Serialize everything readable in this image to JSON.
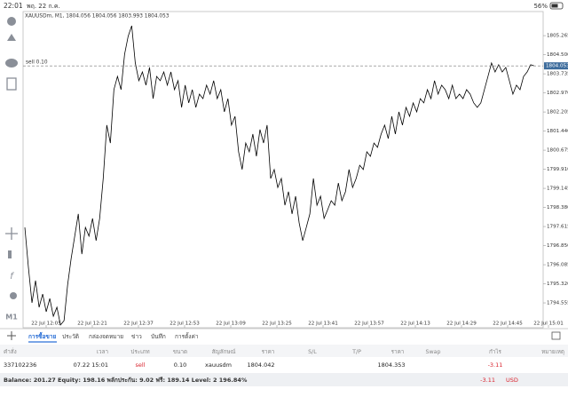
{
  "status_bar": {
    "time": "22:01",
    "date": "พฤ. 22 ก.ค.",
    "battery": "56%"
  },
  "chart_data": {
    "type": "line",
    "title": "XAUUSDm, M1, 1804.056 1804.056 1803.993 1804.053",
    "color": "#000000",
    "values": [
      1797.58,
      1795.98,
      1794.56,
      1795.45,
      1794.38,
      1794.91,
      1794.2,
      1794.73,
      1794.02,
      1794.38,
      1793.67,
      1793.84,
      1795.27,
      1796.34,
      1797.23,
      1798.12,
      1796.51,
      1797.58,
      1797.23,
      1797.94,
      1797.05,
      1797.94,
      1799.54,
      1801.68,
      1800.96,
      1803.1,
      1803.63,
      1803.1,
      1804.52,
      1805.24,
      1805.66,
      1804.17,
      1803.46,
      1803.81,
      1803.28,
      1803.99,
      1802.74,
      1803.63,
      1803.46,
      1803.81,
      1803.28,
      1803.81,
      1803.1,
      1803.46,
      1802.39,
      1803.28,
      1802.57,
      1803.1,
      1802.39,
      1802.92,
      1802.74,
      1803.28,
      1802.92,
      1803.46,
      1802.74,
      1803.1,
      1802.21,
      1802.74,
      1801.68,
      1802.03,
      1800.61,
      1799.9,
      1800.96,
      1800.61,
      1801.32,
      1800.43,
      1801.5,
      1800.96,
      1801.68,
      1799.54,
      1799.9,
      1799.18,
      1799.54,
      1798.47,
      1799.01,
      1798.12,
      1798.83,
      1797.76,
      1797.05,
      1797.58,
      1798.12,
      1799.54,
      1798.47,
      1798.83,
      1797.94,
      1798.29,
      1798.65,
      1798.47,
      1799.36,
      1798.65,
      1799.01,
      1799.9,
      1799.18,
      1799.54,
      1800.07,
      1799.9,
      1800.61,
      1800.43,
      1800.96,
      1800.79,
      1801.32,
      1801.68,
      1801.14,
      1802.03,
      1801.32,
      1802.21,
      1801.68,
      1802.39,
      1802.03,
      1802.57,
      1802.21,
      1802.74,
      1802.57,
      1803.1,
      1802.74,
      1803.46,
      1802.92,
      1803.28,
      1803.1,
      1802.74,
      1803.28,
      1802.74,
      1802.92,
      1802.74,
      1803.1,
      1802.92,
      1802.57,
      1802.39,
      1802.57,
      1803.1,
      1803.63,
      1804.17,
      1803.81,
      1804.1,
      1803.81,
      1803.99,
      1803.46,
      1802.92,
      1803.28,
      1803.1,
      1803.63,
      1803.81,
      1804.1,
      1804.05
    ],
    "ylim": [
      1793.56,
      1806.23
    ],
    "yticks": [
      1805.265,
      {
        "value": 1804.5,
        "label": "1804.500"
      },
      1803.735,
      {
        "value": 1802.97,
        "label": "1802.970"
      },
      1802.205,
      {
        "value": 1801.44,
        "label": "1801.440"
      },
      1800.675,
      {
        "value": 1799.91,
        "label": "1799.910"
      },
      1799.145,
      {
        "value": 1798.38,
        "label": "1798.380"
      },
      1797.615,
      {
        "value": 1796.85,
        "label": "1796.850"
      },
      1796.085,
      {
        "value": 1795.32,
        "label": "1795.320"
      },
      1794.555
    ],
    "xtick_labels": [
      "22 Jul 12:05",
      "22 Jul 12:21",
      "22 Jul 12:37",
      "22 Jul 12:53",
      "22 Jul 13:09",
      "22 Jul 13:25",
      "22 Jul 13:41",
      "22 Jul 13:57",
      "22 Jul 14:13",
      "22 Jul 14:29",
      "22 Jul 14:45",
      "22 Jul 15:01"
    ],
    "order_line": {
      "label": "sell 0.10",
      "price": 1804.053
    }
  },
  "left_toolbar": {
    "timeframe": "M1"
  },
  "tabs": [
    "การซื้อขาย",
    "ประวัติ",
    "กล่องจดหมาย",
    "ข่าว",
    "บันทึก",
    "การตั้งค่า"
  ],
  "table": {
    "headers": [
      "คำสั่ง",
      "เวลา",
      "ประเภท",
      "ขนาด",
      "สัญลักษณ์",
      "ราคา",
      "S/L",
      "T/P",
      "ราคา",
      "Swap",
      "กำไร",
      "หมายเหตุ"
    ],
    "rows": [
      {
        "order": "337102236",
        "time": "07.22 15:01",
        "type": "sell",
        "volume": "0.10",
        "symbol": "xauusdm",
        "open_price": "1804.042",
        "price": "1804.353",
        "profit": "-3.11"
      }
    ]
  },
  "footer": {
    "summary": "Balance: 201.27 Equity: 198.16 พลักประกัน: 9.02 ฟรี: 189.14 Level: 2 196.84%",
    "profit": "-3.11",
    "currency": "USD"
  }
}
